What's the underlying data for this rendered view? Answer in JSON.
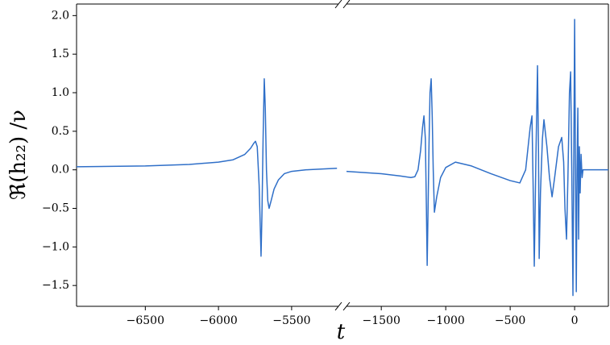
{
  "chart_data": [
    {
      "type": "line",
      "color": "#2f6fc8",
      "ylabel": "ℜ(h₂₂) /ν",
      "xlim": [
        -6970,
        -5180
      ],
      "ylim": [
        -1.77,
        2.15
      ],
      "xticks": [
        {
          "value": -6500,
          "label": "−6500"
        },
        {
          "value": -6000,
          "label": "−6000"
        },
        {
          "value": -5500,
          "label": "−5500"
        }
      ],
      "yticks": [
        {
          "value": -1.5,
          "label": "−1.5"
        },
        {
          "value": -1,
          "label": "−1.0"
        },
        {
          "value": -0.5,
          "label": "−0.5"
        },
        {
          "value": 0,
          "label": "0.0"
        },
        0.5,
        {
          "value": 1,
          "label": "1.0"
        },
        1.5,
        {
          "value": 2,
          "label": "2.0"
        }
      ],
      "x": [
        -6970,
        -6500,
        -6200,
        -6000,
        -5900,
        -5820,
        -5780,
        -5760,
        -5747,
        -5735,
        -5722,
        -5712,
        -5709,
        -5703,
        -5695,
        -5687,
        -5680,
        -5672,
        -5663,
        -5654,
        -5640,
        -5620,
        -5590,
        -5550,
        -5500,
        -5400,
        -5300,
        -5190
      ],
      "values": [
        0.04,
        0.05,
        0.07,
        0.1,
        0.13,
        0.2,
        0.28,
        0.34,
        0.37,
        0.3,
        -0.2,
        -0.9,
        -1.12,
        -0.6,
        0.4,
        1.18,
        0.8,
        0.0,
        -0.4,
        -0.5,
        -0.4,
        -0.25,
        -0.13,
        -0.05,
        -0.02,
        0.0,
        0.01,
        0.02
      ]
    },
    {
      "type": "line",
      "color": "#2f6fc8",
      "xlabel": "t",
      "xlim": [
        -1770,
        262
      ],
      "ylim": [
        -1.77,
        2.15
      ],
      "xticks": [
        {
          "value": -1500,
          "label": "−1500"
        },
        {
          "value": -1000,
          "label": "−1000"
        },
        {
          "value": -500,
          "label": "−500"
        },
        0
      ],
      "x": [
        -1770,
        -1500,
        -1350,
        -1270,
        -1240,
        -1215,
        -1195,
        -1180,
        -1169,
        -1158,
        -1150,
        -1144,
        -1138,
        -1130,
        -1122,
        -1113,
        -1105,
        -1097,
        -1088,
        -1070,
        -1040,
        -1000,
        -925,
        -800,
        -650,
        -500,
        -425,
        -380,
        -345,
        -331,
        -322,
        -313,
        -300,
        -288,
        -280,
        -275,
        -265,
        -250,
        -238,
        -215,
        -195,
        -175,
        -155,
        -125,
        -100,
        -85,
        -75,
        -63,
        -52,
        -40,
        -31,
        -22,
        -13,
        -6,
        0,
        6,
        13,
        19,
        25,
        31,
        37,
        43,
        50,
        58,
        65,
        100,
        262
      ],
      "values": [
        -0.02,
        -0.05,
        -0.08,
        -0.1,
        -0.09,
        0.0,
        0.25,
        0.55,
        0.7,
        0.4,
        -0.5,
        -1.24,
        -0.6,
        0.3,
        1.0,
        1.18,
        0.7,
        0.0,
        -0.55,
        -0.35,
        -0.1,
        0.03,
        0.1,
        0.05,
        -0.05,
        -0.14,
        -0.17,
        0.0,
        0.55,
        0.7,
        -0.2,
        -1.25,
        0.2,
        1.35,
        0.2,
        -1.15,
        -0.3,
        0.4,
        0.65,
        0.3,
        -0.1,
        -0.35,
        -0.1,
        0.3,
        0.42,
        0.1,
        -0.5,
        -0.9,
        -0.1,
        1.0,
        1.27,
        0.0,
        -1.63,
        0.3,
        1.95,
        0.2,
        -1.58,
        0.0,
        0.8,
        -0.9,
        0.3,
        -0.3,
        0.2,
        -0.1,
        0.0,
        0.0,
        0.0
      ]
    }
  ]
}
